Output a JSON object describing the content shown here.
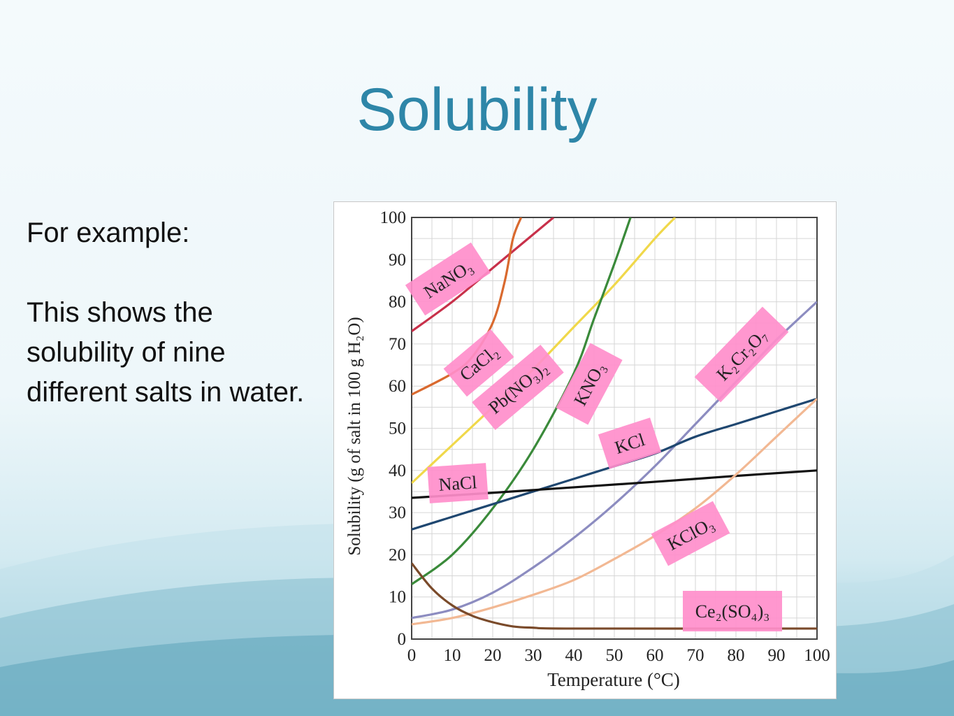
{
  "slide": {
    "title": "Solubility",
    "intro": "For example:",
    "body": "This shows the solubility of nine different salts in water."
  },
  "colors": {
    "title": "#2e86a8",
    "label_highlight": "#ff8ecb"
  },
  "chart_data": {
    "type": "line",
    "xlabel": "Temperature (°C)",
    "ylabel": "Solubility (g of salt in 100 g H₂O)",
    "xlim": [
      0,
      100
    ],
    "ylim": [
      0,
      100
    ],
    "xticks": [
      0,
      10,
      20,
      30,
      40,
      50,
      60,
      70,
      80,
      90,
      100
    ],
    "yticks": [
      0,
      10,
      20,
      30,
      40,
      50,
      60,
      70,
      80,
      90,
      100
    ],
    "grid": true,
    "series": [
      {
        "name": "NaNO₃",
        "color": "#c8304a",
        "points": [
          [
            0,
            73
          ],
          [
            10,
            80
          ],
          [
            20,
            88
          ],
          [
            30,
            96
          ],
          [
            35,
            100
          ]
        ]
      },
      {
        "name": "CaCl₂",
        "color": "#d9692e",
        "points": [
          [
            0,
            58
          ],
          [
            10,
            63
          ],
          [
            15,
            67
          ],
          [
            20,
            75
          ],
          [
            23,
            85
          ],
          [
            25,
            95
          ],
          [
            27,
            100
          ]
        ]
      },
      {
        "name": "Pb(NO₃)₂",
        "color": "#f0d84a",
        "points": [
          [
            0,
            37
          ],
          [
            10,
            46
          ],
          [
            20,
            55
          ],
          [
            30,
            64
          ],
          [
            40,
            74
          ],
          [
            50,
            84
          ],
          [
            60,
            95
          ],
          [
            65,
            100
          ]
        ]
      },
      {
        "name": "KNO₃",
        "color": "#3a8a3a",
        "points": [
          [
            0,
            13
          ],
          [
            10,
            20
          ],
          [
            20,
            31
          ],
          [
            30,
            45
          ],
          [
            40,
            63
          ],
          [
            45,
            76
          ],
          [
            50,
            89
          ],
          [
            54,
            100
          ]
        ]
      },
      {
        "name": "K₂Cr₂O₇",
        "color": "#8c8cc0",
        "points": [
          [
            0,
            5
          ],
          [
            10,
            7
          ],
          [
            20,
            11
          ],
          [
            30,
            17
          ],
          [
            40,
            24
          ],
          [
            50,
            32
          ],
          [
            60,
            41
          ],
          [
            70,
            51
          ],
          [
            80,
            61
          ],
          [
            90,
            71
          ],
          [
            100,
            80
          ]
        ]
      },
      {
        "name": "KCl",
        "color": "#1f4770",
        "points": [
          [
            0,
            26
          ],
          [
            10,
            29
          ],
          [
            20,
            32
          ],
          [
            30,
            35
          ],
          [
            40,
            38
          ],
          [
            50,
            41
          ],
          [
            60,
            44
          ],
          [
            70,
            48
          ],
          [
            80,
            51
          ],
          [
            90,
            54
          ],
          [
            100,
            57
          ]
        ]
      },
      {
        "name": "NaCl",
        "color": "#111111",
        "points": [
          [
            0,
            33.5
          ],
          [
            20,
            34.7
          ],
          [
            40,
            36
          ],
          [
            60,
            37.3
          ],
          [
            80,
            38.7
          ],
          [
            100,
            40
          ]
        ]
      },
      {
        "name": "KClO₃",
        "color": "#f2b893",
        "points": [
          [
            0,
            3.5
          ],
          [
            10,
            5
          ],
          [
            20,
            7.5
          ],
          [
            30,
            10.5
          ],
          [
            40,
            14
          ],
          [
            50,
            19
          ],
          [
            60,
            24.5
          ],
          [
            70,
            31
          ],
          [
            80,
            39
          ],
          [
            90,
            48
          ],
          [
            100,
            57
          ]
        ]
      },
      {
        "name": "Ce₂(SO₄)₃",
        "color": "#7a4a2a",
        "points": [
          [
            0,
            18
          ],
          [
            5,
            12
          ],
          [
            10,
            8
          ],
          [
            15,
            5.5
          ],
          [
            20,
            4
          ],
          [
            25,
            3
          ],
          [
            30,
            2.7
          ],
          [
            40,
            2.5
          ],
          [
            100,
            2.5
          ]
        ]
      }
    ]
  }
}
